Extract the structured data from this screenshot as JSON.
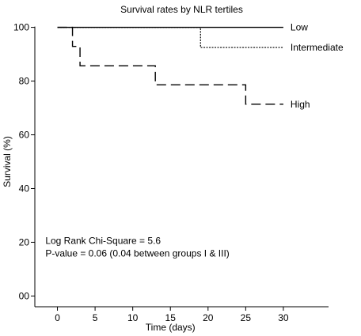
{
  "chart_data": {
    "type": "line",
    "title": "Survival rates by NLR tertiles",
    "xlabel": "Time (days)",
    "ylabel": "Survival (%)",
    "xlim": [
      -3,
      36
    ],
    "ylim": [
      -4,
      104
    ],
    "xticks": [
      "0",
      "5",
      "10",
      "15",
      "20",
      "25",
      "30"
    ],
    "yticks": [
      "00",
      "20",
      "40",
      "60",
      "80",
      "100"
    ],
    "grid": false,
    "series": [
      {
        "name": "Low",
        "style": "solid",
        "x": [
          0,
          30
        ],
        "y": [
          100,
          100
        ],
        "step": true
      },
      {
        "name": "Intermediate",
        "style": "dotted",
        "x": [
          0,
          19,
          30
        ],
        "y": [
          100,
          92.5,
          92.5
        ],
        "step": true
      },
      {
        "name": "High",
        "style": "dashed",
        "x": [
          0,
          2,
          3,
          13,
          25,
          30
        ],
        "y": [
          100,
          92.9,
          85.7,
          78.6,
          71.4,
          71.4
        ],
        "step": true
      }
    ],
    "annotations": [
      "Log Rank Chi-Square = 5.6",
      "P-value = 0.06 (0.04 between groups I & III)"
    ]
  }
}
